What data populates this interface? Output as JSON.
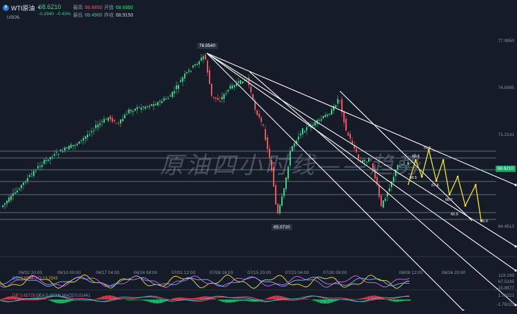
{
  "header": {
    "symbol_badge": "S",
    "symbol_name": "WTI原油",
    "symbol_code": "USOIL",
    "last_price": "68.6210",
    "change": "-0.2940",
    "change_pct": "-0.43%",
    "high_label": "最高",
    "high_value": "68.8850",
    "open_label": "开盘",
    "open_value": "68.6950",
    "low_label": "最低",
    "low_value": "68.4900",
    "prev_close_label": "昨收",
    "prev_close_value": "68.9150"
  },
  "y_axis": {
    "labels": [
      "77.9950",
      "74.5995",
      "71.2141",
      "68.6210",
      "64.4513"
    ]
  },
  "x_axis": {
    "labels": [
      "06/02 20:00",
      "06/10 00:00",
      "06/17 04:00",
      "06/24 08:00",
      "07/01 12:00",
      "07/08 16:00",
      "07/15 20:00",
      "07/23 04:00",
      "07/30 08:00",
      "08/08 12:00",
      "08/16 20:00"
    ]
  },
  "annotations": {
    "high_mark": "76.9540",
    "low_mark": "65.0710",
    "proj_labels": [
      "69.5",
      "70.0",
      "68.5",
      "67.6",
      "66.7",
      "65.5",
      "65.0"
    ]
  },
  "watermark": "原油四小时线——趋势",
  "indicator1": {
    "values": [
      "119.199",
      "67.5335",
      "-15.8877"
    ],
    "legend": [
      "CCI:",
      "0.8544",
      "CCI:",
      "13.2543"
    ]
  },
  "indicator2": {
    "values": [
      "1.70221",
      "-1.76221"
    ],
    "legend_dif": "DIF:0.65725",
    "legend_dea": "DEA:0.45006",
    "legend_macd": "MACD:0.01441"
  },
  "colors": {
    "bg": "#151c28",
    "up": "#3bd18a",
    "down": "#f0525f",
    "price_box": "#1fa56a",
    "projection": "#f5e52a",
    "trendline": "#ffffff"
  },
  "icons": [
    "symbol-badge-icon",
    "dropdown-caret-icon"
  ]
}
